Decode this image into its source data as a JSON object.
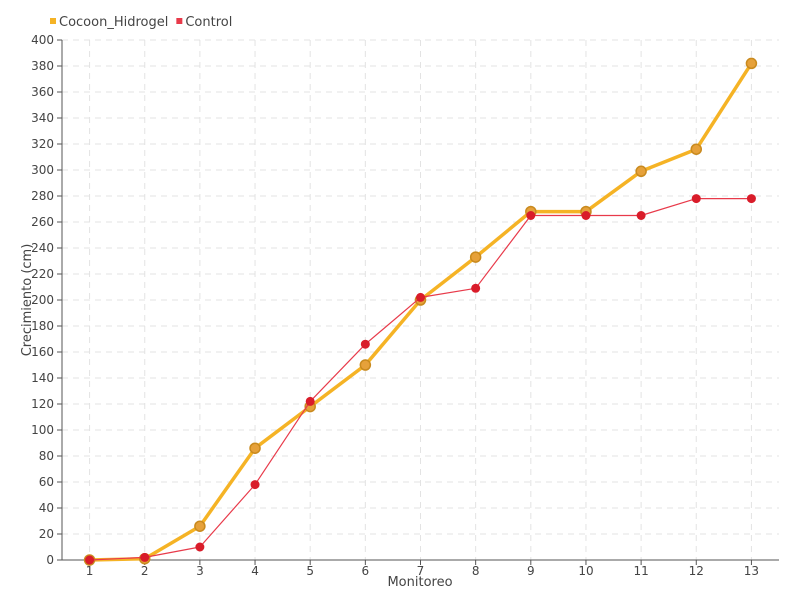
{
  "chart_data": {
    "type": "line",
    "title": "",
    "xlabel": "Monitoreo",
    "ylabel": "Crecimiento (cm)",
    "x": [
      1,
      2,
      3,
      4,
      5,
      6,
      7,
      8,
      9,
      10,
      11,
      12,
      13
    ],
    "x_tick_labels": [
      "1",
      "2",
      "3",
      "4",
      "5",
      "6",
      "7",
      "8",
      "9",
      "10",
      "11",
      "12",
      "13"
    ],
    "ylim": [
      0,
      400
    ],
    "y_ticks": [
      0,
      20,
      40,
      60,
      80,
      100,
      120,
      140,
      160,
      180,
      200,
      220,
      240,
      260,
      280,
      300,
      320,
      340,
      360,
      380,
      400
    ],
    "grid": true,
    "legend_position": "top-left",
    "series": [
      {
        "name": "Cocoon_Hidrogel",
        "color": "#f5b325",
        "marker_color": "#e6a13a",
        "values": [
          0,
          1,
          26,
          86,
          118,
          150,
          200,
          233,
          268,
          268,
          299,
          316,
          382
        ]
      },
      {
        "name": "Control",
        "color": "#e83a4a",
        "marker_color": "#d91c2a",
        "values": [
          0,
          2,
          10,
          58,
          122,
          166,
          202,
          209,
          265,
          265,
          265,
          278,
          278
        ]
      }
    ]
  }
}
